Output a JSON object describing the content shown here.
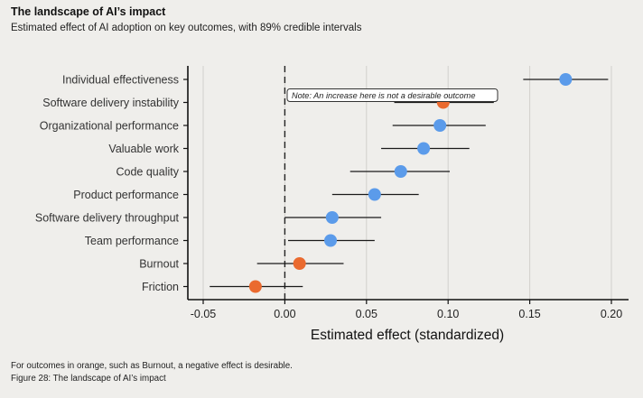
{
  "header": {
    "title": "The landscape of AI’s impact",
    "subtitle": "Estimated effect of AI adoption on key outcomes, with 89% credible intervals"
  },
  "footer": {
    "note": "For outcomes in orange, such as Burnout, a negative effect is desirable.",
    "caption": "Figure 28: The landscape of AI’s impact"
  },
  "colors": {
    "blue": "#5b9bea",
    "orange": "#ea6a2f",
    "background": "#efeeeb",
    "grid": "#d2d0cc",
    "axis": "#111111",
    "interval": "#1a1a1a"
  },
  "chart_data": {
    "type": "scatter",
    "subtype": "forest-plot",
    "xlabel": "Estimated effect (standardized)",
    "ylabel": "",
    "xlim": [
      -0.05,
      0.2
    ],
    "xticks": [
      "-0.05",
      "0.00",
      "0.05",
      "0.10",
      "0.15",
      "0.20"
    ],
    "xtick_values": [
      -0.05,
      0.0,
      0.05,
      0.1,
      0.15,
      0.2
    ],
    "grid": "vertical",
    "reference_line": {
      "x": 0,
      "style": "dashed"
    },
    "annotation": {
      "text": "Note: An increase here is not a desirable outcome",
      "target": "Software delivery instability"
    },
    "rows": [
      {
        "label": "Individual effectiveness",
        "estimate": 0.172,
        "low": 0.146,
        "high": 0.198,
        "color_role": "blue"
      },
      {
        "label": "Software delivery instability",
        "estimate": 0.097,
        "low": 0.067,
        "high": 0.128,
        "color_role": "orange"
      },
      {
        "label": "Organizational performance",
        "estimate": 0.095,
        "low": 0.066,
        "high": 0.123,
        "color_role": "blue"
      },
      {
        "label": "Valuable work",
        "estimate": 0.085,
        "low": 0.059,
        "high": 0.113,
        "color_role": "blue"
      },
      {
        "label": "Code quality",
        "estimate": 0.071,
        "low": 0.04,
        "high": 0.101,
        "color_role": "blue"
      },
      {
        "label": "Product performance",
        "estimate": 0.055,
        "low": 0.029,
        "high": 0.082,
        "color_role": "blue"
      },
      {
        "label": "Software delivery throughput",
        "estimate": 0.029,
        "low": 0.0,
        "high": 0.059,
        "color_role": "blue"
      },
      {
        "label": "Team performance",
        "estimate": 0.028,
        "low": 0.002,
        "high": 0.055,
        "color_role": "blue"
      },
      {
        "label": "Burnout",
        "estimate": 0.009,
        "low": -0.017,
        "high": 0.036,
        "color_role": "orange"
      },
      {
        "label": "Friction",
        "estimate": -0.018,
        "low": -0.046,
        "high": 0.011,
        "color_role": "orange"
      }
    ]
  }
}
